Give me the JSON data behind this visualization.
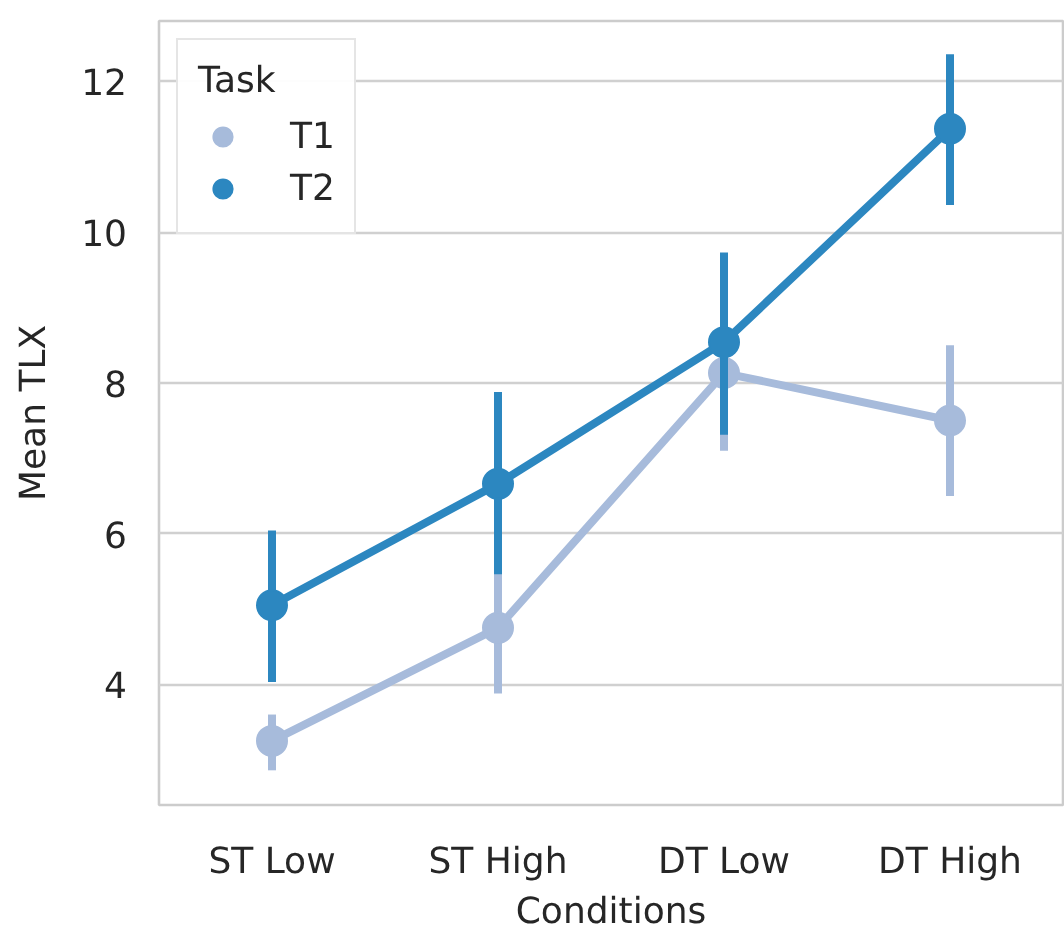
{
  "chart_data": {
    "type": "line",
    "xlabel": "Conditions",
    "ylabel": "Mean TLX",
    "legend_title": "Task",
    "categories": [
      "ST Low",
      "ST High",
      "DT Low",
      "DT High"
    ],
    "series": [
      {
        "name": "T1",
        "color": "#a7bbdb",
        "values": [
          3.25,
          4.75,
          8.13,
          7.5
        ],
        "errors": [
          [
            2.86,
            3.6
          ],
          [
            3.88,
            5.6
          ],
          [
            7.1,
            9.1
          ],
          [
            6.5,
            8.5
          ]
        ]
      },
      {
        "name": "T2",
        "color": "#2c87c0",
        "values": [
          5.05,
          6.66,
          8.54,
          11.37
        ],
        "errors": [
          [
            4.03,
            6.04
          ],
          [
            5.46,
            7.88
          ],
          [
            7.31,
            9.73
          ],
          [
            10.36,
            12.36
          ]
        ]
      }
    ],
    "ylim": [
      2.4,
      12.8
    ],
    "yticks": [
      4,
      6,
      8,
      10,
      12
    ],
    "grid": "y",
    "legend": "top left",
    "marker": "circle",
    "line_style": "solid"
  }
}
